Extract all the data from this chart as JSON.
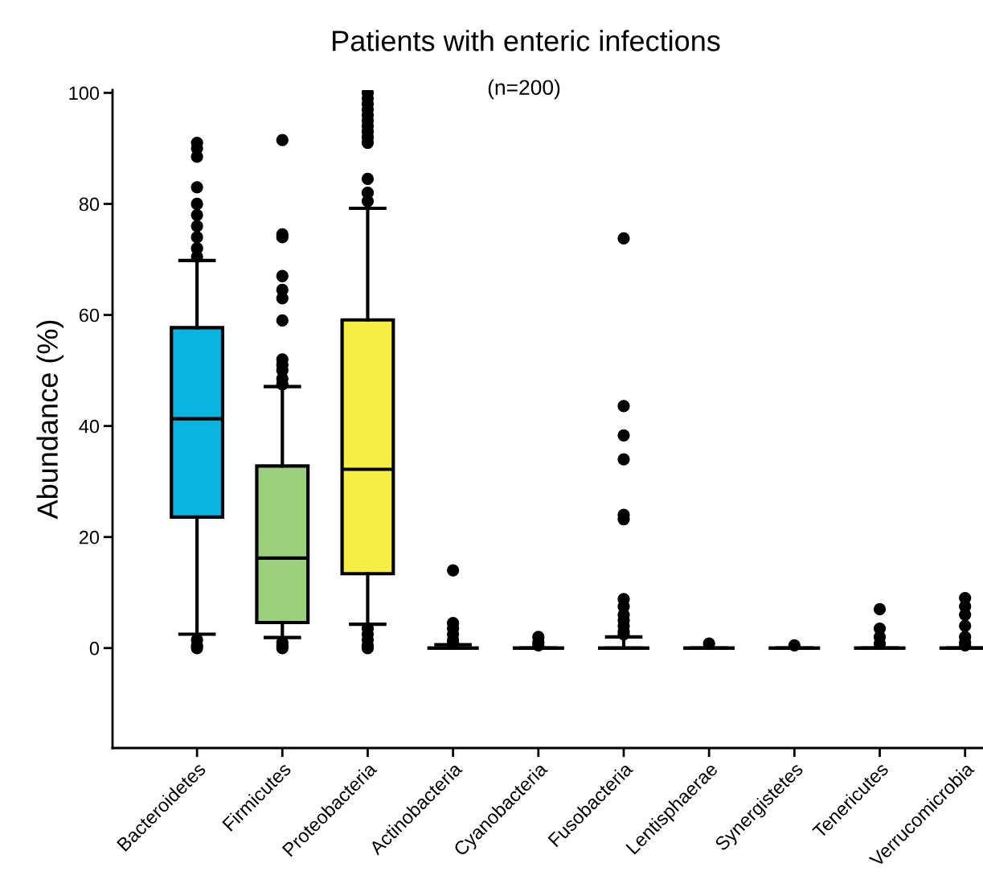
{
  "chart_data": {
    "type": "box",
    "title": "Patients with enteric infections",
    "subtitle": "(n=200)",
    "ylabel": "Abundance (%)",
    "categories": [
      "Bacteroidetes",
      "Firmicutes",
      "Proteobacteria",
      "Actinobacteria",
      "Cyanobacteria",
      "Fusobacteria",
      "Lentisphaerae",
      "Synergistetes",
      "Tenericutes",
      "Verrucomicrobia"
    ],
    "colors": [
      "#0ab4e0",
      "#9bd07c",
      "#f6ee45",
      "#000000",
      "#000000",
      "#000000",
      "#000000",
      "#000000",
      "#000000",
      "#000000"
    ],
    "boxes": [
      {
        "low": 2.5,
        "q1": 23.6,
        "median": 41.3,
        "q3": 57.7,
        "high": 69.8,
        "outliers": [
          91,
          90,
          88.5,
          83,
          80,
          78,
          76,
          74,
          72,
          70.5,
          1.5,
          0.5,
          0
        ]
      },
      {
        "low": 1.9,
        "q1": 4.6,
        "median": 16.2,
        "q3": 32.8,
        "high": 47.1,
        "outliers": [
          91.5,
          74.5,
          74,
          67,
          64.5,
          63,
          59,
          52,
          51,
          50,
          48.5,
          47.5,
          1,
          0.5,
          0
        ]
      },
      {
        "low": 4.3,
        "q1": 13.4,
        "median": 32.2,
        "q3": 59.1,
        "high": 79.2,
        "outliers": [
          100,
          99,
          98,
          97,
          96,
          95,
          94,
          93,
          92,
          91,
          84.5,
          82,
          80.5,
          3.5,
          2.5,
          1.5,
          0.5,
          0
        ]
      },
      {
        "low": 0,
        "q1": 0,
        "median": 0,
        "q3": 0,
        "high": 0.6,
        "outliers": [
          14,
          4.5,
          3.5,
          2.5,
          1.5,
          1
        ]
      },
      {
        "low": 0,
        "q1": 0,
        "median": 0,
        "q3": 0,
        "high": 0,
        "outliers": [
          2,
          1,
          0.5
        ]
      },
      {
        "low": 0,
        "q1": 0,
        "median": 0,
        "q3": 0,
        "high": 2,
        "outliers": [
          73.8,
          43.6,
          38.3,
          34,
          24,
          23.2,
          8.8,
          7.5,
          6,
          5,
          4,
          3,
          2.5
        ]
      },
      {
        "low": 0,
        "q1": 0,
        "median": 0,
        "q3": 0,
        "high": 0,
        "outliers": [
          0.8
        ]
      },
      {
        "low": 0,
        "q1": 0,
        "median": 0,
        "q3": 0,
        "high": 0,
        "outliers": [
          0.5
        ]
      },
      {
        "low": 0,
        "q1": 0,
        "median": 0,
        "q3": 0,
        "high": 0,
        "outliers": [
          7,
          3.5,
          2,
          0.8
        ]
      },
      {
        "low": 0,
        "q1": 0,
        "median": 0,
        "q3": 0,
        "high": 0,
        "outliers": [
          9,
          7.5,
          6,
          4,
          2,
          1,
          0.5
        ]
      }
    ],
    "ylim": [
      -18,
      100.5
    ],
    "yticks": [
      0,
      20,
      40,
      60,
      80,
      100
    ],
    "marker": "circle"
  }
}
